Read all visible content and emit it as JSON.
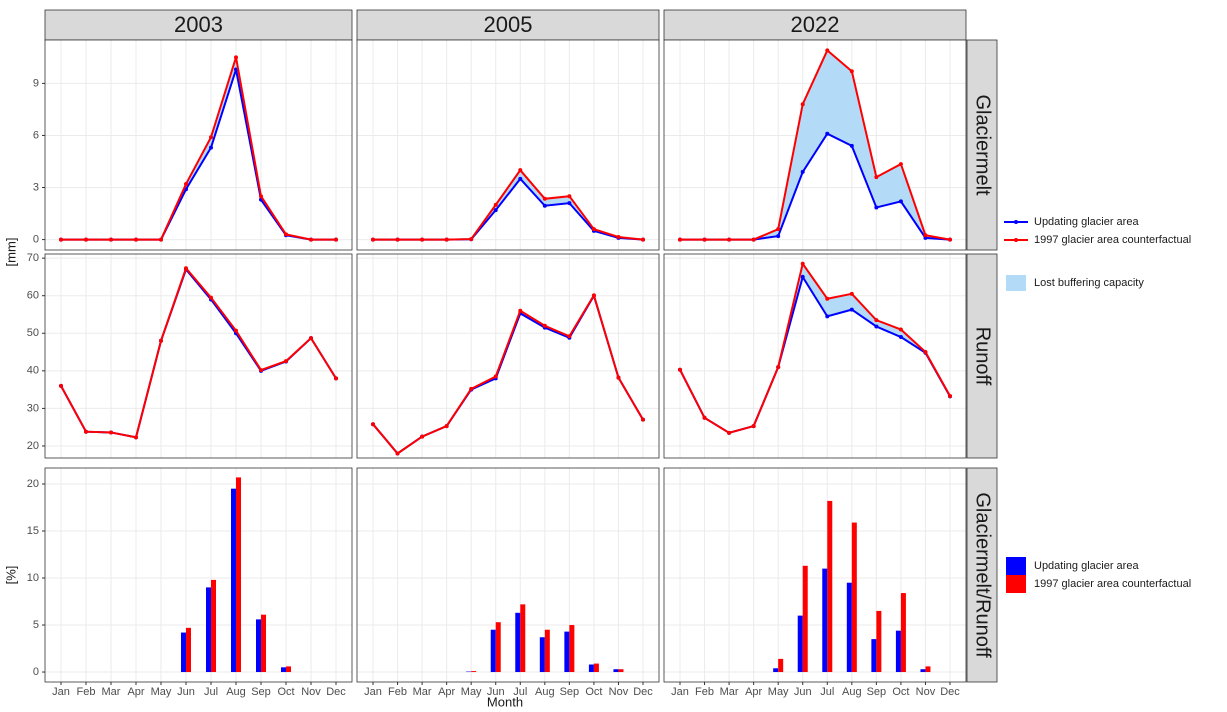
{
  "facets": [
    "2003",
    "2005",
    "2022"
  ],
  "categories": [
    "Jan",
    "Feb",
    "Mar",
    "Apr",
    "May",
    "Jun",
    "Jul",
    "Aug",
    "Sep",
    "Oct",
    "Nov",
    "Dec"
  ],
  "x_label": "Month",
  "chart_data": [
    {
      "type": "line",
      "title": "Glaciermelt",
      "y_label": "[mm]",
      "ylim": [
        -0.6,
        11.5
      ],
      "yticks": [
        0,
        3,
        6,
        9
      ],
      "grid": true,
      "series": [
        {
          "name": "Updating glacier area",
          "color": "#0000ff",
          "values": [
            [
              0,
              0,
              0,
              0,
              0,
              2.9,
              5.3,
              9.8,
              2.3,
              0.25,
              0,
              0
            ],
            [
              0,
              0,
              0,
              0,
              0.02,
              1.7,
              3.5,
              1.95,
              2.1,
              0.5,
              0.1,
              0
            ],
            [
              0,
              0,
              0,
              0,
              0.2,
              3.9,
              6.1,
              5.4,
              1.85,
              2.2,
              0.1,
              0
            ]
          ]
        },
        {
          "name": "1997 glacier area counterfactual",
          "color": "#ff0000",
          "values": [
            [
              0,
              0,
              0,
              0,
              0,
              3.2,
              5.9,
              10.5,
              2.5,
              0.3,
              0,
              0
            ],
            [
              0,
              0,
              0,
              0,
              0.03,
              2.0,
              4.0,
              2.35,
              2.5,
              0.6,
              0.15,
              0
            ],
            [
              0,
              0,
              0,
              0,
              0.6,
              7.8,
              10.9,
              9.7,
              3.6,
              4.35,
              0.25,
              0
            ]
          ]
        }
      ],
      "fill_between": {
        "name": "Lost buffering capacity",
        "color": "#b3dbf8"
      }
    },
    {
      "type": "line",
      "title": "Runoff",
      "ylim": [
        16.8,
        71.1
      ],
      "yticks": [
        20,
        30,
        40,
        50,
        60,
        70
      ],
      "grid": true,
      "series": [
        {
          "color": "#0000ff",
          "values": [
            [
              36,
              23.8,
              23.6,
              22.3,
              48,
              67,
              59,
              50,
              40,
              42.5,
              48.7,
              38
            ],
            [
              25.8,
              18,
              22.5,
              25.3,
              35,
              38,
              55.3,
              51.5,
              48.8,
              60,
              38.2,
              27
            ],
            [
              40.3,
              27.5,
              23.5,
              25.3,
              41,
              65,
              54.5,
              56.3,
              51.8,
              49,
              44.8,
              33.2
            ]
          ]
        },
        {
          "color": "#ff0000",
          "values": [
            [
              36,
              23.8,
              23.6,
              22.3,
              48,
              67.3,
              59.5,
              50.7,
              40.2,
              42.6,
              48.7,
              38
            ],
            [
              25.8,
              18,
              22.5,
              25.3,
              35.2,
              38.5,
              56,
              52,
              49.2,
              60.1,
              38.2,
              27
            ],
            [
              40.3,
              27.5,
              23.5,
              25.3,
              41,
              68.5,
              59.2,
              60.5,
              53.5,
              51,
              45,
              33.3
            ]
          ]
        }
      ],
      "fill_between": {
        "color": "#b3dbf8"
      }
    },
    {
      "type": "bar",
      "title": "Glaciermelt/Runoff",
      "y_label": "[%]",
      "ylim": [
        -1.06,
        21.7
      ],
      "yticks": [
        0,
        5,
        10,
        15,
        20
      ],
      "grid": true,
      "series": [
        {
          "name": "Updating glacier area",
          "color": "#0000ff",
          "values": [
            [
              0,
              0,
              0,
              0,
              0,
              4.2,
              9,
              19.5,
              5.6,
              0.5,
              0,
              0
            ],
            [
              0,
              0,
              0,
              0,
              0.05,
              4.5,
              6.3,
              3.7,
              4.3,
              0.8,
              0.3,
              0
            ],
            [
              0,
              0,
              0,
              0,
              0.4,
              6,
              11,
              9.5,
              3.5,
              4.4,
              0.3,
              0
            ]
          ]
        },
        {
          "name": "1997 glacier area counterfactual",
          "color": "#ff0000",
          "values": [
            [
              0,
              0,
              0,
              0,
              0,
              4.7,
              9.8,
              20.7,
              6.1,
              0.6,
              0,
              0
            ],
            [
              0,
              0,
              0,
              0,
              0.1,
              5.3,
              7.2,
              4.5,
              5,
              0.9,
              0.3,
              0
            ],
            [
              0,
              0,
              0,
              0,
              1.4,
              11.3,
              18.2,
              15.9,
              6.5,
              8.4,
              0.6,
              0
            ]
          ]
        }
      ]
    }
  ]
}
